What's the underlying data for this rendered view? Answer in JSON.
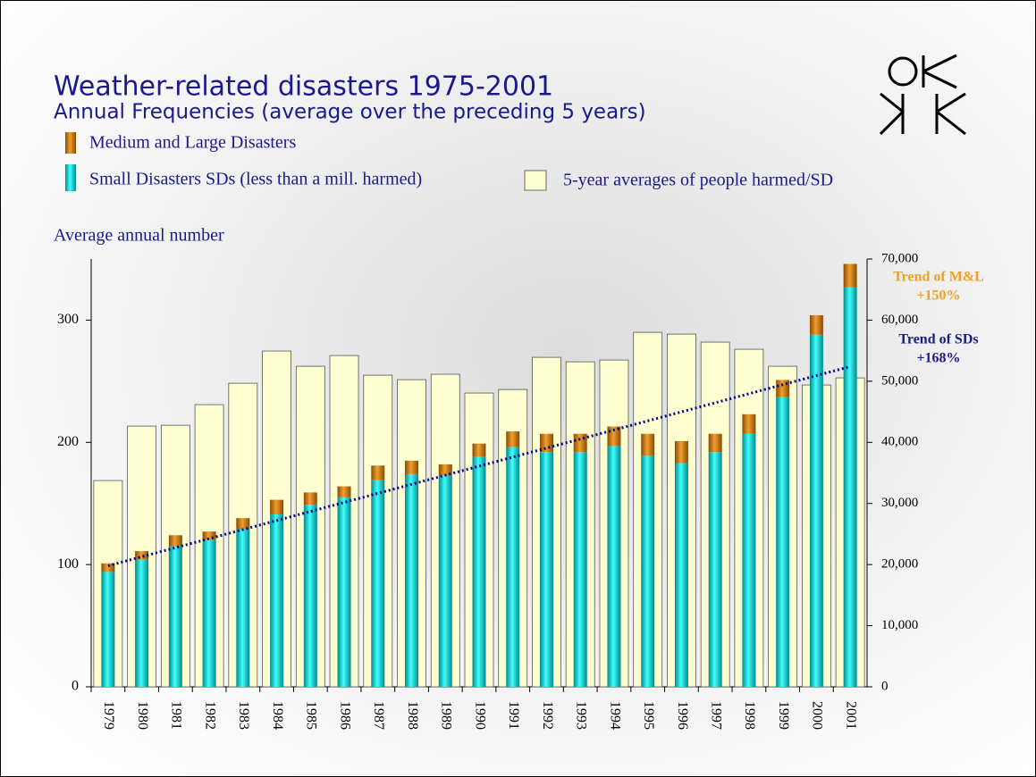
{
  "chart_data": {
    "type": "bar",
    "title": "Weather-related disasters 1975-2001",
    "subtitle": "Annual Frequencies (average over the preceding 5 years)",
    "y_label": "Average annual number",
    "categories": [
      "1979",
      "1980",
      "1981",
      "1982",
      "1983",
      "1984",
      "1985",
      "1986",
      "1987",
      "1988",
      "1989",
      "1990",
      "1991",
      "1992",
      "1993",
      "1994",
      "1995",
      "1996",
      "1997",
      "1998",
      "1999",
      "2000",
      "2001"
    ],
    "series": [
      {
        "name": "Medium and Large Disasters",
        "color": "#c97a00",
        "values": [
          7,
          7,
          9,
          7,
          9,
          12,
          10,
          9,
          12,
          11,
          9,
          11,
          13,
          15,
          15,
          16,
          18,
          18,
          15,
          16,
          14,
          16,
          19
        ]
      },
      {
        "name": "Small Disasters SDs (less than a mill. harmed)",
        "color": "#00c4c4",
        "values": [
          94,
          104,
          115,
          120,
          129,
          141,
          149,
          155,
          169,
          174,
          173,
          188,
          196,
          192,
          192,
          197,
          189,
          183,
          192,
          207,
          237,
          288,
          327
        ]
      },
      {
        "name": "5-year averages of people harmed/SD",
        "color": "#ffffd2",
        "axis": "y2",
        "values": [
          33750,
          42660,
          42800,
          46170,
          49670,
          54940,
          52450,
          54200,
          50990,
          50260,
          51140,
          48070,
          48650,
          53910,
          53180,
          53470,
          58000,
          57710,
          56400,
          55230,
          52450,
          49380,
          50550
        ]
      }
    ],
    "trend": {
      "color": "#00008b",
      "values": [
        99,
        262
      ]
    },
    "annotations": [
      {
        "lines": [
          "Trend of M&L",
          "+150%"
        ],
        "color": "#f0a020"
      },
      {
        "lines": [
          "Trend of SDs",
          "+168%"
        ],
        "color": "#1a1a8c"
      }
    ],
    "ylim": [
      0,
      350
    ],
    "yticks": [
      0,
      100,
      200,
      300
    ],
    "y2lim": [
      0,
      70000
    ],
    "y2ticks": [
      0,
      {
        "value": 10000,
        "label": "10,000"
      },
      {
        "value": 20000,
        "label": "20,000"
      },
      {
        "value": 30000,
        "label": "30,000"
      },
      {
        "value": 40000,
        "label": "40,000"
      },
      {
        "value": 50000,
        "label": "50,000"
      },
      {
        "value": 60000,
        "label": "60,000"
      },
      {
        "value": 70000,
        "label": "70,000"
      }
    ]
  }
}
